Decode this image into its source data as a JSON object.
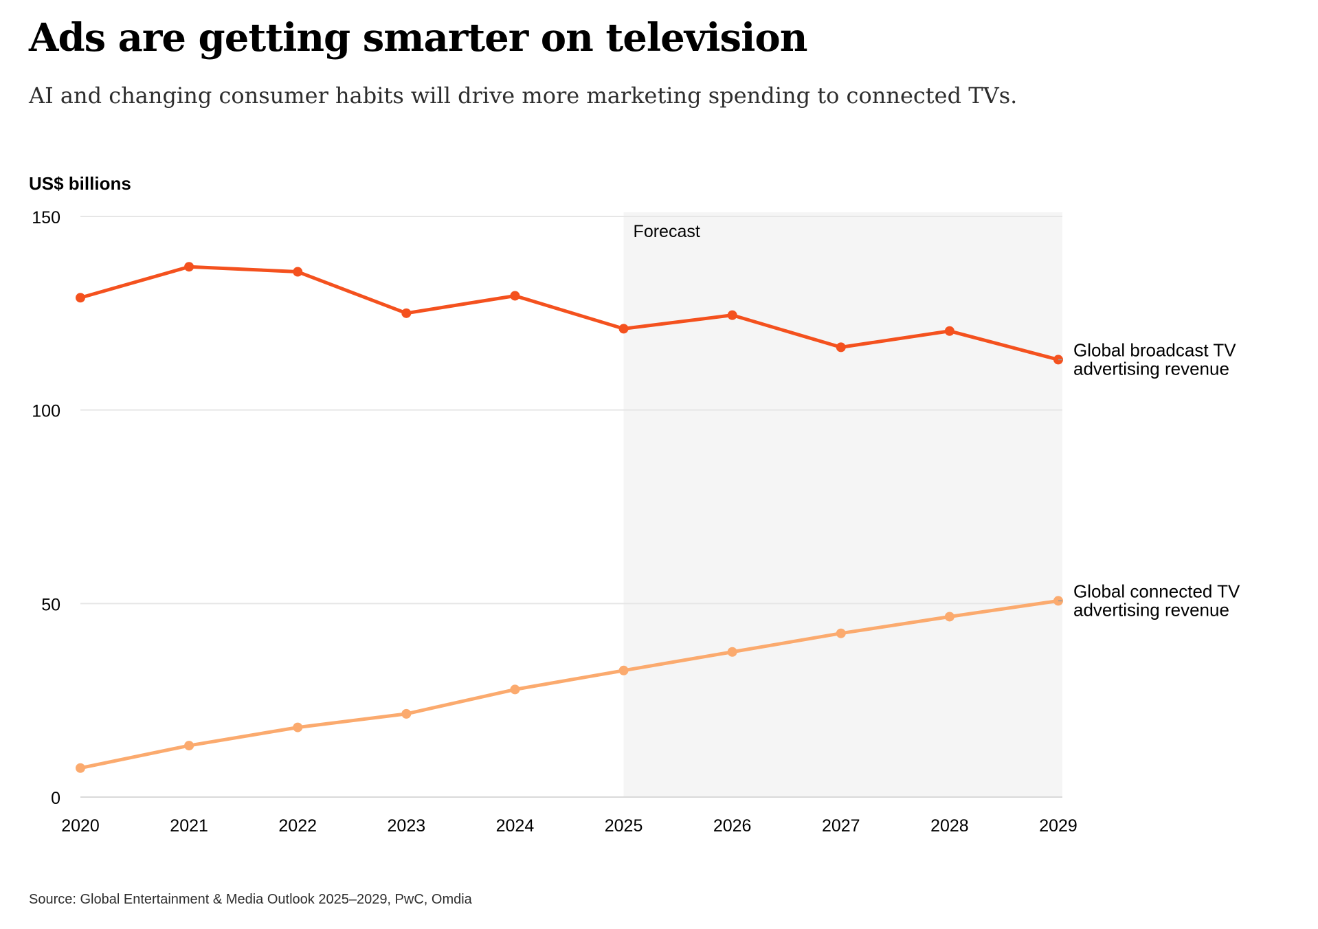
{
  "header": {
    "title": "Ads are getting smarter on television",
    "subtitle": "AI and changing consumer habits will drive more marketing spending to connected TVs."
  },
  "footer": {
    "source": "Source: Global Entertainment & Media Outlook 2025–2029, PwC, Omdia"
  },
  "chart_data": {
    "type": "line",
    "title": "Ads are getting smarter on television",
    "subtitle": "AI and changing consumer habits will drive more marketing spending to connected TVs.",
    "ylabel": "US$ billions",
    "xlabel": "",
    "x": [
      "2020",
      "2021",
      "2022",
      "2023",
      "2024",
      "2025",
      "2026",
      "2027",
      "2028",
      "2029"
    ],
    "ylim": [
      0,
      150
    ],
    "yticks": [
      0,
      50,
      100,
      150
    ],
    "grid": true,
    "forecast": {
      "label": "Forecast",
      "from": "2025",
      "to": "2029"
    },
    "series": [
      {
        "name": "Global broadcast TV advertising revenue",
        "label_lines": [
          "Global broadcast TV",
          "advertising revenue"
        ],
        "color": "#f4511e",
        "values": [
          129,
          137,
          135.7,
          125,
          129.5,
          121,
          124.5,
          116.2,
          120.4,
          113
        ]
      },
      {
        "name": "Global connected TV advertising revenue",
        "label_lines": [
          "Global connected TV",
          "advertising revenue"
        ],
        "color": "#fbaa6e",
        "values": [
          7.5,
          13.3,
          18,
          21.5,
          27.8,
          32.7,
          37.5,
          42.3,
          46.6,
          50.7
        ]
      }
    ]
  }
}
